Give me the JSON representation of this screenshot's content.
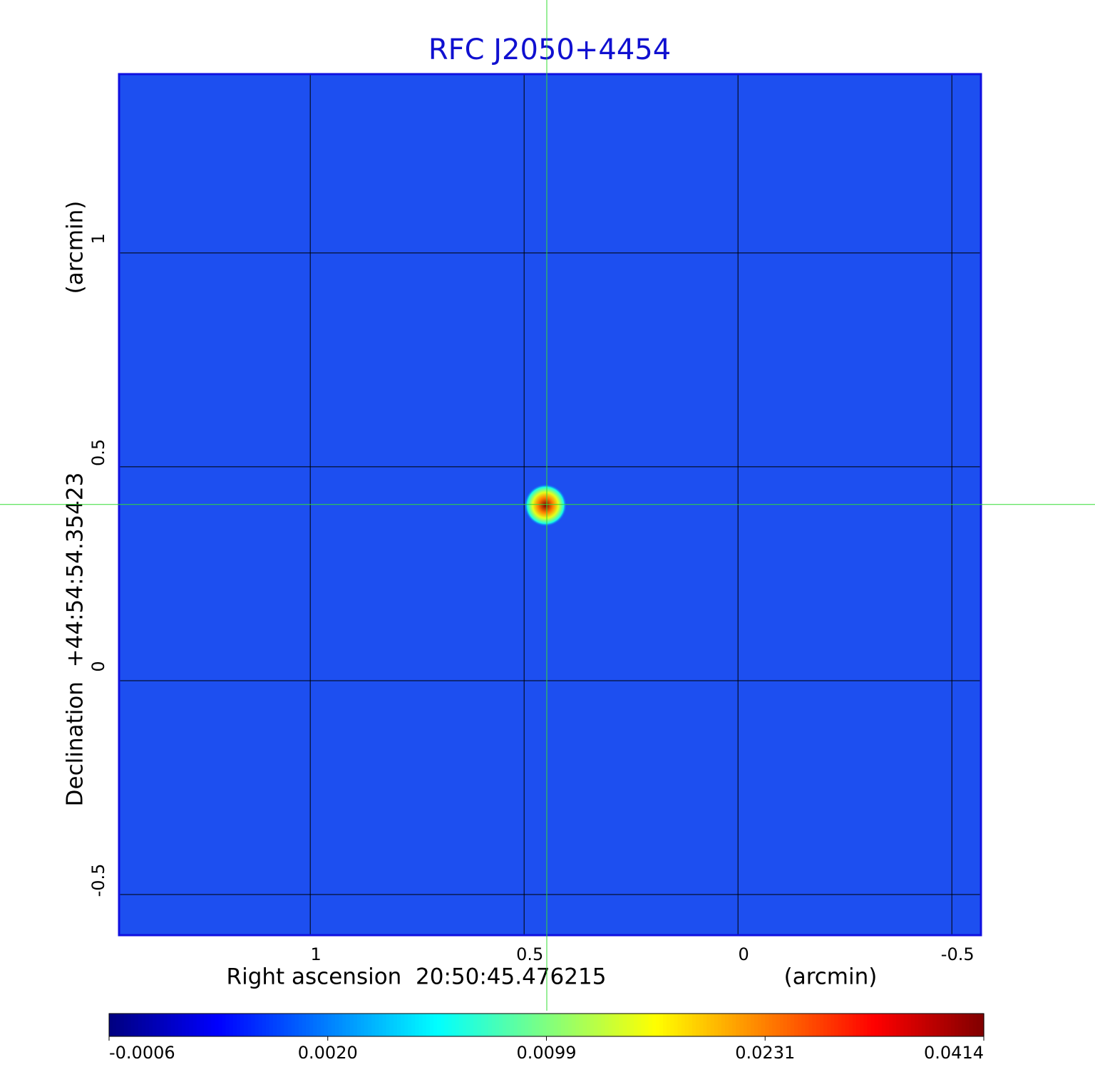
{
  "chart_data": {
    "type": "image",
    "title": "RFC J2050+4454",
    "x_label": "Right ascension  20:50:45.476215",
    "x_unit": "(arcmin)",
    "y_label": "Declination  +44:54:54.35423",
    "y_unit": "(arcmin)",
    "xlim": [
      1.447,
      -0.568
    ],
    "ylim": [
      -0.595,
      1.418
    ],
    "xticks": [
      1.0,
      0.5,
      0.0,
      -0.5
    ],
    "yticks": [
      -0.5,
      0.0,
      0.5,
      1.0
    ],
    "grid": true,
    "crosshair": {
      "x": 0.447,
      "y": 0.412
    },
    "source": {
      "x": 0.45,
      "y": 0.41,
      "peak": 0.0414
    },
    "colormap": "jet",
    "colorbar_ticks": [
      -0.0006,
      {
        "value": 0.002,
        "label": "0.0020"
      },
      0.0099,
      0.0231,
      0.0414
    ]
  }
}
